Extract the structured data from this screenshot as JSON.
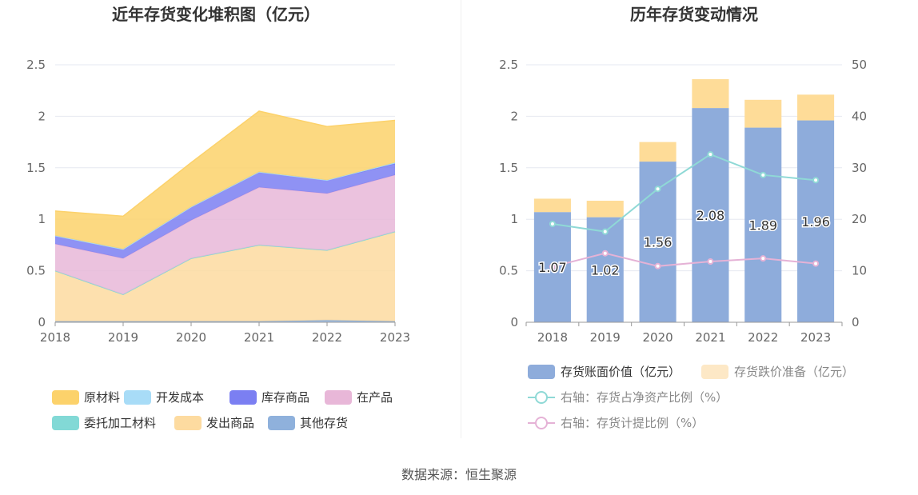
{
  "source": "数据来源：恒生聚源",
  "chart_data": [
    {
      "type": "area",
      "stacked": true,
      "title": "近年存货变化堆积图（亿元）",
      "x": [
        "2018",
        "2019",
        "2020",
        "2021",
        "2022",
        "2023"
      ],
      "ylim": [
        0,
        2.5
      ],
      "yticks": [
        "0",
        "0.5",
        "1",
        "1.5",
        "2",
        "2.5"
      ],
      "grid": true,
      "legend_position": "bottom",
      "series": [
        {
          "name": "原材料",
          "color": "#fcd26b",
          "values": [
            0.24,
            0.32,
            0.43,
            0.59,
            0.52,
            0.41
          ]
        },
        {
          "name": "开发成本",
          "color": "#a8dcf7",
          "values": [
            0,
            0,
            0,
            0,
            0,
            0.01
          ]
        },
        {
          "name": "库存商品",
          "color": "#7b7ff2",
          "values": [
            0.08,
            0.09,
            0.13,
            0.15,
            0.13,
            0.11
          ]
        },
        {
          "name": "在产品",
          "color": "#e8b7d8",
          "values": [
            0.26,
            0.35,
            0.37,
            0.56,
            0.55,
            0.55
          ]
        },
        {
          "name": "委托加工材料",
          "color": "#82d9d6",
          "values": [
            0,
            0,
            0,
            0,
            0,
            0
          ]
        },
        {
          "name": "发出商品",
          "color": "#fddba0",
          "values": [
            0.49,
            0.26,
            0.61,
            0.74,
            0.68,
            0.87
          ]
        },
        {
          "name": "其他存货",
          "color": "#8fb1dc",
          "values": [
            0.01,
            0.01,
            0.01,
            0.01,
            0.02,
            0.01
          ]
        }
      ]
    },
    {
      "type": "bar",
      "title": "历年存货变动情况",
      "categories": [
        "2018",
        "2019",
        "2020",
        "2021",
        "2022",
        "2023"
      ],
      "ylim": [
        0,
        2.5
      ],
      "yticks": [
        "0",
        "0.5",
        "1",
        "1.5",
        "2",
        "2.5"
      ],
      "y2lim": [
        0,
        50
      ],
      "y2ticks": [
        "0",
        "10",
        "20",
        "30",
        "40",
        "50"
      ],
      "grid": true,
      "legend_position": "bottom",
      "series": [
        {
          "name": "存货账面价值（亿元）",
          "kind": "bar",
          "color": "#8eacdb",
          "values": [
            1.07,
            1.02,
            1.56,
            2.08,
            1.89,
            1.96
          ],
          "labels": [
            "1.07",
            "1.02",
            "1.56",
            "2.08",
            "1.89",
            "1.96"
          ]
        },
        {
          "name": "存货跌价准备（亿元）",
          "kind": "bar-stack",
          "color": "#fedc98",
          "legend_color": "#fde8c6",
          "values": [
            0.13,
            0.16,
            0.19,
            0.28,
            0.27,
            0.25
          ]
        },
        {
          "name": "右轴：存货占净资产比例（%）",
          "kind": "line",
          "axis": "right",
          "color": "#8fd9d6",
          "values": [
            19.1,
            17.6,
            25.9,
            32.6,
            28.6,
            27.6
          ]
        },
        {
          "name": "右轴：存货计提比例（%）",
          "kind": "line",
          "axis": "right",
          "color": "#e5b2d6",
          "values": [
            10.8,
            13.4,
            10.9,
            11.8,
            12.4,
            11.4
          ]
        }
      ]
    }
  ]
}
